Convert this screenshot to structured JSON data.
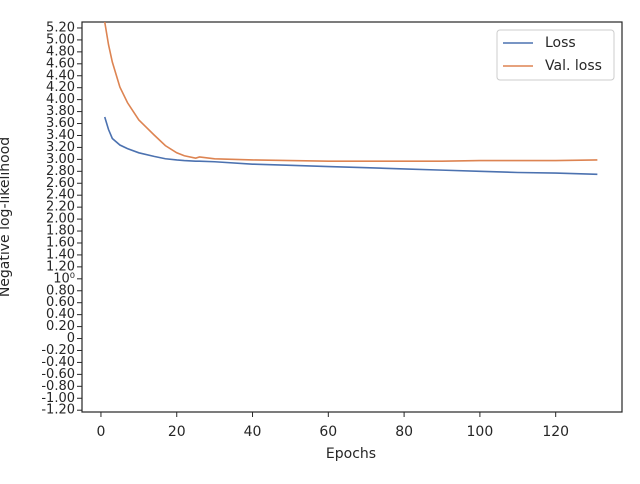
{
  "chart_data": {
    "type": "line",
    "xlabel": "Epochs",
    "ylabel": "Negative log-likelihood",
    "x": [
      1,
      2,
      3,
      5,
      7,
      10,
      14,
      17,
      20,
      22,
      25,
      26,
      30,
      40,
      50,
      60,
      70,
      80,
      90,
      100,
      110,
      120,
      131
    ],
    "series": [
      {
        "name": "Loss",
        "color": "#4c72b0",
        "values": [
          3.71,
          3.5,
          3.35,
          3.24,
          3.18,
          3.11,
          3.05,
          3.01,
          2.99,
          2.98,
          2.97,
          2.97,
          2.96,
          2.92,
          2.9,
          2.88,
          2.86,
          2.84,
          2.82,
          2.8,
          2.78,
          2.77,
          2.75
        ]
      },
      {
        "name": "Val. loss",
        "color": "#dd8452",
        "values": [
          5.3,
          4.92,
          4.63,
          4.21,
          3.95,
          3.66,
          3.41,
          3.23,
          3.11,
          3.06,
          3.02,
          3.04,
          3.01,
          2.99,
          2.98,
          2.97,
          2.97,
          2.97,
          2.97,
          2.98,
          2.98,
          2.98,
          2.99
        ]
      }
    ],
    "xlim": [
      -5,
      137.5
    ],
    "xticks": [
      0,
      20,
      40,
      60,
      80,
      100,
      120
    ],
    "ylim": [
      -1.23,
      5.3
    ],
    "yticks": [
      {
        "value": -1.2,
        "label": "-1.20"
      },
      {
        "value": -1,
        "label": "-1.00"
      },
      {
        "value": -0.8,
        "label": "-0.80"
      },
      {
        "value": -0.6,
        "label": "-0.60"
      },
      {
        "value": -0.4,
        "label": "-0.40"
      },
      {
        "value": -0.2,
        "label": "-0.20"
      },
      0,
      {
        "value": 0.2,
        "label": "0.20"
      },
      {
        "value": 0.4,
        "label": "0.40"
      },
      {
        "value": 0.6,
        "label": "0.60"
      },
      {
        "value": 0.8,
        "label": "0.80"
      },
      {
        "value": 1,
        "label": "10⁰"
      },
      {
        "value": 1.2,
        "label": "1.20"
      },
      {
        "value": 1.4,
        "label": "1.40"
      },
      {
        "value": 1.6,
        "label": "1.60"
      },
      {
        "value": 1.8,
        "label": "1.80"
      },
      {
        "value": 2,
        "label": "2.00"
      },
      {
        "value": 2.2,
        "label": "2.20"
      },
      {
        "value": 2.4,
        "label": "2.40"
      },
      {
        "value": 2.6,
        "label": "2.60"
      },
      {
        "value": 2.8,
        "label": "2.80"
      },
      {
        "value": 3,
        "label": "3.00"
      },
      {
        "value": 3.2,
        "label": "3.20"
      },
      {
        "value": 3.4,
        "label": "3.40"
      },
      {
        "value": 3.6,
        "label": "3.60"
      },
      {
        "value": 3.8,
        "label": "3.80"
      },
      {
        "value": 4,
        "label": "4.00"
      },
      {
        "value": 4.2,
        "label": "4.20"
      },
      {
        "value": 4.4,
        "label": "4.40"
      },
      {
        "value": 4.6,
        "label": "4.60"
      },
      {
        "value": 4.8,
        "label": "4.80"
      },
      {
        "value": 5,
        "label": "5.00"
      },
      {
        "value": 5.2,
        "label": "5.20"
      }
    ],
    "legend": "upper right"
  }
}
